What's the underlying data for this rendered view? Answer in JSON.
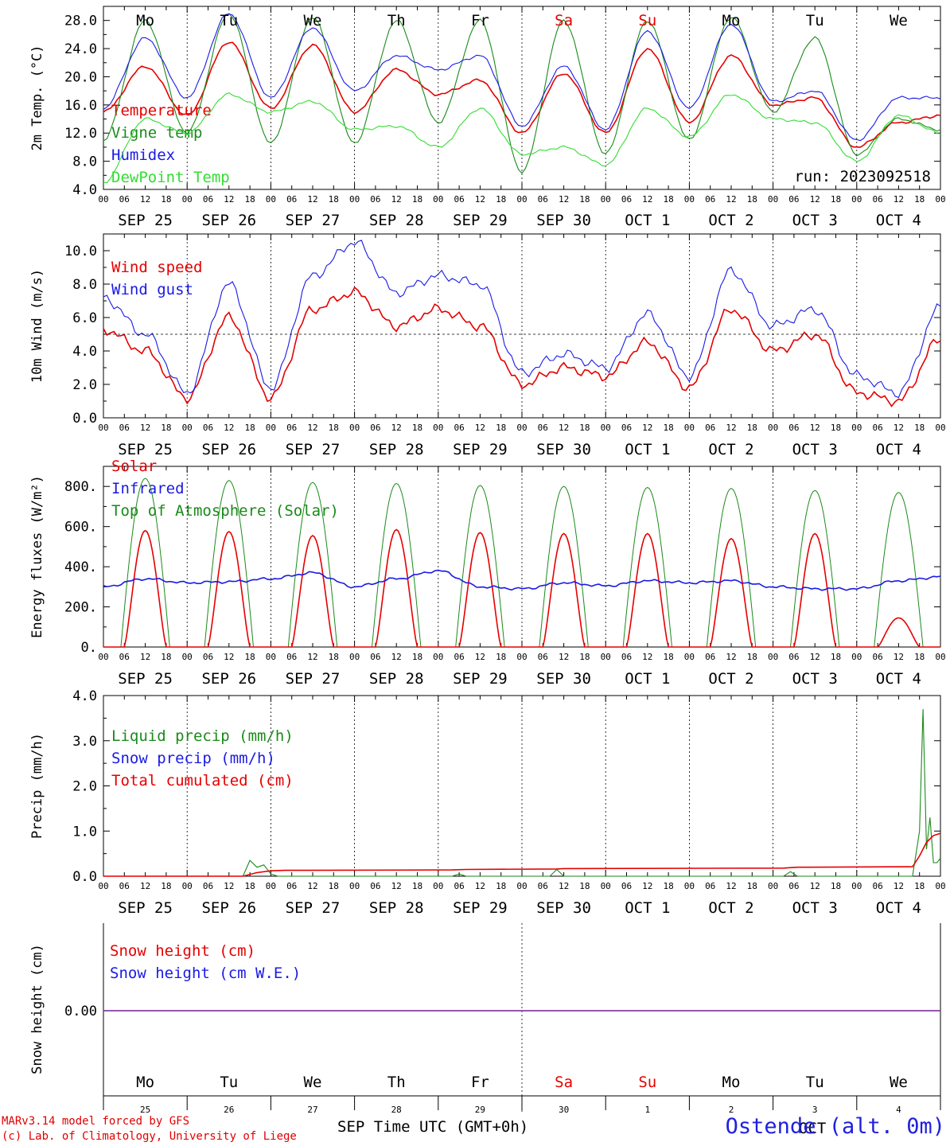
{
  "colors": {
    "red": "#e60000",
    "green": "#1a8a1a",
    "blue": "#1a1ae6",
    "lightgreen": "#33dd33",
    "purple": "#8040a0"
  },
  "hours": [
    "00",
    "06",
    "12",
    "18"
  ],
  "dates": [
    "SEP 25",
    "SEP 26",
    "SEP 27",
    "SEP 28",
    "SEP 29",
    "SEP 30",
    "OCT  1",
    "OCT  2",
    "OCT  3",
    "OCT  4"
  ],
  "weekdays": [
    {
      "label": "Mo",
      "weekend": false
    },
    {
      "label": "Tu",
      "weekend": false
    },
    {
      "label": "We",
      "weekend": false
    },
    {
      "label": "Th",
      "weekend": false
    },
    {
      "label": "Fr",
      "weekend": false
    },
    {
      "label": "Sa",
      "weekend": true
    },
    {
      "label": "Su",
      "weekend": true
    },
    {
      "label": "Mo",
      "weekend": false
    },
    {
      "label": "Tu",
      "weekend": false
    },
    {
      "label": "We",
      "weekend": false
    }
  ],
  "day_numbers": [
    "25",
    "26",
    "27",
    "28",
    "29",
    "30",
    "1",
    "2",
    "3",
    "4"
  ],
  "footer": {
    "credit1": "MARv3.14 model forced by GFS",
    "credit2": "(c) Lab. of Climatology, University of Liege",
    "axis_title": "Time UTC (GMT+0h)",
    "month_left": "SEP",
    "month_right": "OCT",
    "station": "Ostende (alt. 0m)"
  },
  "chart_data": [
    {
      "type": "line",
      "ylabel": "2m Temp. (°C)",
      "ylim": [
        4,
        30
      ],
      "yticks": [
        4,
        8,
        12,
        16,
        20,
        24,
        28
      ],
      "ytick_labels": [
        "4.0",
        "8.0",
        "12.0",
        "16.0",
        "20.0",
        "24.0",
        "28.0"
      ],
      "annotation": "run: 2023092518",
      "legend": [
        {
          "label": "Temperature",
          "color": "red"
        },
        {
          "label": "Vigne temp",
          "color": "green"
        },
        {
          "label": "Humidex",
          "color": "blue"
        },
        {
          "label": "DewPoint Temp",
          "color": "lightgreen"
        }
      ],
      "x_hours": [
        0,
        12,
        24,
        36,
        48,
        60,
        72,
        84,
        96,
        108,
        120,
        132,
        144,
        156,
        168,
        180,
        192,
        204,
        216,
        228,
        240
      ],
      "series": [
        {
          "name": "Temperature",
          "color": "red",
          "values": [
            15.0,
            21.5,
            14.5,
            25.0,
            15.5,
            24.5,
            15.0,
            21.0,
            17.5,
            19.5,
            12.0,
            20.5,
            12.0,
            24.0,
            13.5,
            23.0,
            16.0,
            17.0,
            10.0,
            13.5,
            14.5
          ]
        },
        {
          "name": "Vigne temp",
          "color": "green",
          "values": [
            11.0,
            28.0,
            12.0,
            29.0,
            10.5,
            28.5,
            10.5,
            28.0,
            13.5,
            28.0,
            6.5,
            28.0,
            9.0,
            28.0,
            11.0,
            28.5,
            15.0,
            25.5,
            9.0,
            14.0,
            12.5
          ]
        },
        {
          "name": "Humidex",
          "color": "blue",
          "values": [
            15.5,
            25.5,
            17.0,
            29.0,
            17.0,
            27.0,
            18.0,
            23.0,
            21.0,
            23.0,
            13.0,
            21.5,
            12.5,
            26.5,
            15.5,
            27.5,
            16.5,
            18.0,
            11.0,
            17.0,
            17.0
          ]
        },
        {
          "name": "DewPoint Temp",
          "color": "lightgreen",
          "values": [
            5.0,
            14.0,
            12.0,
            17.5,
            15.0,
            16.5,
            12.5,
            13.0,
            10.0,
            15.5,
            9.0,
            10.0,
            7.5,
            15.5,
            11.5,
            17.5,
            14.0,
            13.5,
            8.0,
            14.5,
            12.0
          ]
        }
      ]
    },
    {
      "type": "line",
      "ylabel": "10m Wind (m/s)",
      "ylim": [
        0,
        11
      ],
      "yticks": [
        0,
        2,
        4,
        6,
        8,
        10
      ],
      "ytick_labels": [
        "0.0",
        "2.0",
        "4.0",
        "6.0",
        "8.0",
        "10.0"
      ],
      "reference_line": 5,
      "legend": [
        {
          "label": "Wind speed",
          "color": "red"
        },
        {
          "label": "Wind gust",
          "color": "blue"
        }
      ],
      "x_hours": [
        0,
        12,
        24,
        36,
        48,
        60,
        72,
        84,
        96,
        108,
        120,
        132,
        144,
        156,
        168,
        180,
        192,
        204,
        216,
        228,
        240
      ],
      "series": [
        {
          "name": "Wind speed",
          "color": "red",
          "values": [
            5.3,
            4.0,
            1.2,
            6.0,
            1.2,
            6.5,
            7.5,
            5.5,
            6.5,
            5.5,
            2.0,
            3.0,
            2.5,
            4.5,
            1.8,
            6.5,
            4.0,
            5.0,
            1.5,
            1.0,
            4.7
          ]
        },
        {
          "name": "Wind gust",
          "color": "blue",
          "values": [
            7.2,
            5.0,
            1.5,
            8.0,
            1.8,
            8.5,
            10.5,
            7.5,
            8.5,
            8.0,
            2.7,
            3.8,
            3.0,
            6.2,
            2.5,
            8.8,
            5.5,
            6.5,
            2.5,
            1.5,
            6.6
          ]
        }
      ]
    },
    {
      "type": "line",
      "ylabel": "Energy fluxes (W/m²)",
      "ylim": [
        0,
        900
      ],
      "yticks": [
        0,
        200,
        400,
        600,
        800
      ],
      "ytick_labels": [
        "0.",
        "200.",
        "400.",
        "600.",
        "800."
      ],
      "legend": [
        {
          "label": "Solar",
          "color": "red"
        },
        {
          "label": "Infrared",
          "color": "blue"
        },
        {
          "label": "Top of Atmosphere (Solar)",
          "color": "green"
        }
      ],
      "daily_peaks_toa": [
        840,
        830,
        820,
        815,
        805,
        800,
        795,
        790,
        780,
        770
      ],
      "daily_peaks_solar": [
        580,
        575,
        555,
        585,
        570,
        565,
        565,
        540,
        565,
        145
      ],
      "infrared_hours": [
        0,
        12,
        24,
        36,
        48,
        60,
        72,
        84,
        96,
        108,
        120,
        132,
        144,
        156,
        168,
        180,
        192,
        204,
        216,
        228,
        240
      ],
      "infrared_values": [
        300,
        340,
        320,
        325,
        340,
        370,
        300,
        340,
        380,
        300,
        290,
        320,
        305,
        330,
        320,
        330,
        300,
        290,
        290,
        330,
        350
      ]
    },
    {
      "type": "line",
      "ylabel": "Precip (mm/h)",
      "ylim": [
        0,
        4
      ],
      "yticks": [
        0,
        1,
        2,
        3,
        4
      ],
      "ytick_labels": [
        "0.0",
        "1.0",
        "2.0",
        "3.0",
        "4.0"
      ],
      "legend": [
        {
          "label": "Liquid precip (mm/h)",
          "color": "green"
        },
        {
          "label": "Snow precip (mm/h)",
          "color": "blue"
        },
        {
          "label": "Total cumulated (cm)",
          "color": "red"
        }
      ],
      "series": [
        {
          "name": "Liquid precip (mm/h)",
          "color": "green",
          "x_hours": [
            0,
            40,
            42,
            44,
            46,
            48,
            50,
            52,
            100,
            102,
            104,
            128,
            130,
            132,
            195,
            197,
            199,
            232,
            234,
            235,
            236,
            237,
            238,
            239,
            240
          ],
          "values": [
            0,
            0,
            0.35,
            0.2,
            0.25,
            0.05,
            0,
            0,
            0,
            0.05,
            0,
            0,
            0.15,
            0,
            0,
            0.1,
            0,
            0,
            1.0,
            3.7,
            0.6,
            1.3,
            0.3,
            0.3,
            0.4
          ]
        },
        {
          "name": "Total cumulated (cm)",
          "color": "red",
          "x_hours": [
            0,
            40,
            44,
            48,
            52,
            100,
            104,
            130,
            132,
            195,
            199,
            232,
            234,
            236,
            238,
            240
          ],
          "values": [
            0,
            0,
            0.08,
            0.12,
            0.13,
            0.14,
            0.15,
            0.16,
            0.17,
            0.18,
            0.2,
            0.21,
            0.45,
            0.75,
            0.9,
            0.95
          ]
        }
      ]
    },
    {
      "type": "line",
      "ylabel": "Snow height (cm)",
      "yticks": [
        0
      ],
      "ytick_labels": [
        "0.00"
      ],
      "legend": [
        {
          "label": "Snow height (cm)",
          "color": "red"
        },
        {
          "label": "Snow height (cm W.E.)",
          "color": "blue"
        }
      ],
      "series": [
        {
          "name": "Snow height",
          "color": "purple",
          "values": [
            0,
            0
          ]
        }
      ]
    }
  ]
}
